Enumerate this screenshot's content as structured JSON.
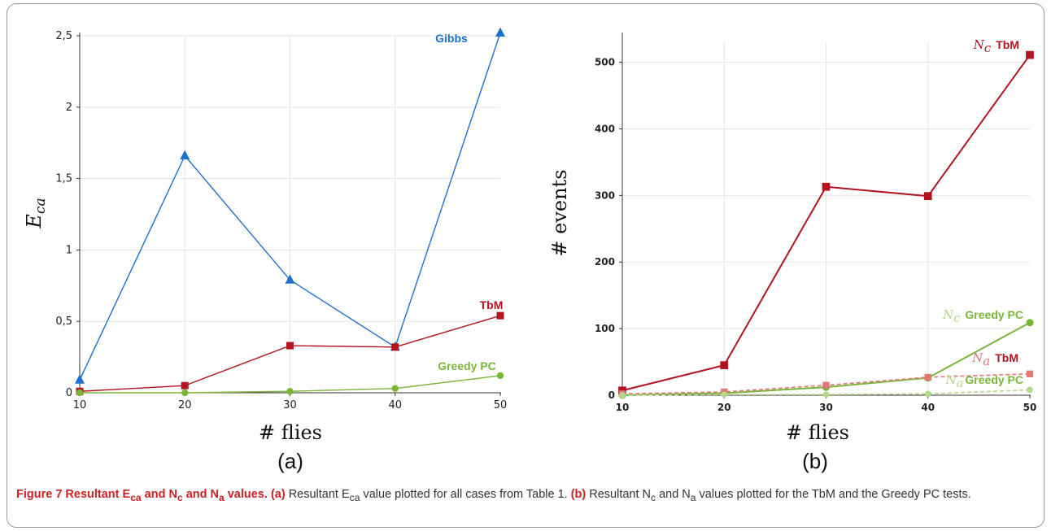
{
  "caption": {
    "figure_title": "Figure 7 Resultant E",
    "figure_title_sub": "ca",
    "figure_title_rest_1": " and N",
    "figure_title_sub2": "c",
    "figure_title_rest_2": " and N",
    "figure_title_sub3": "a",
    "figure_title_rest_3": " values.",
    "part_a_label": "(a)",
    "part_a_text_1": " Resultant E",
    "part_a_sub": "ca",
    "part_a_text_2": " value plotted for all cases from Table 1. ",
    "part_b_label": "(b)",
    "part_b_text_1": " Resultant N",
    "part_b_sub1": "c",
    "part_b_text_2": " and N",
    "part_b_sub2": "a",
    "part_b_text_3": " values plotted for the TbM and the Greedy PC tests."
  },
  "colors": {
    "gibbs": "#1f6fcc",
    "tbm": "#b3141f",
    "greedy": "#7ab53a",
    "tbm_light": "#e07878",
    "greedy_light": "#b5d98a",
    "grid": "#e6e6e6"
  },
  "chart_data": [
    {
      "type": "line",
      "panel_label": "(a)",
      "xlabel": "# flies",
      "ylabel_main": "E",
      "ylabel_sub": "ca",
      "x": [
        10,
        20,
        30,
        40,
        50
      ],
      "xlim": [
        10,
        50
      ],
      "ylim": [
        0,
        2.5
      ],
      "yticks": [
        0,
        0.5,
        1,
        1.5,
        2,
        2.5
      ],
      "ytick_labels": [
        "0",
        "0,5",
        "1",
        "1,5",
        "2",
        "2,5"
      ],
      "xtick_labels": [
        "10",
        "20",
        "30",
        "40",
        "50"
      ],
      "grid": true,
      "series": [
        {
          "name": "Gibbs",
          "values": [
            0.09,
            1.66,
            0.79,
            0.32,
            2.52
          ],
          "color": "#1f6fcc",
          "marker": "triangle"
        },
        {
          "name": "TbM",
          "values": [
            0.01,
            0.05,
            0.33,
            0.32,
            0.54
          ],
          "color": "#b3141f",
          "marker": "square"
        },
        {
          "name": "Greedy PC",
          "values": [
            0.0,
            0.0,
            0.01,
            0.03,
            0.12
          ],
          "color": "#7ab53a",
          "marker": "circle"
        }
      ]
    },
    {
      "type": "line",
      "panel_label": "(b)",
      "xlabel": "# flies",
      "ylabel": "# events",
      "x": [
        10,
        20,
        30,
        40,
        50
      ],
      "xlim": [
        10,
        50
      ],
      "ylim": [
        0,
        530
      ],
      "yticks": [
        0,
        100,
        200,
        300,
        400,
        500
      ],
      "ytick_labels": [
        "0",
        "100",
        "200",
        "300",
        "400",
        "500"
      ],
      "xtick_labels": [
        "10",
        "20",
        "30",
        "40",
        "50"
      ],
      "grid": true,
      "series": [
        {
          "name_var": "N",
          "name_sub": "c",
          "name": "TbM",
          "values": [
            7,
            45,
            313,
            299,
            511
          ],
          "color": "#b3141f",
          "marker": "square",
          "style": "solid"
        },
        {
          "name_var": "N",
          "name_sub": "c",
          "name": "Greedy PC",
          "values": [
            0,
            3,
            12,
            26,
            109
          ],
          "color": "#7ab53a",
          "marker": "circle",
          "style": "solid"
        },
        {
          "name_var": "N",
          "name_sub": "a",
          "name": "TbM",
          "values": [
            2,
            5,
            15,
            27,
            32
          ],
          "color": "#e07878",
          "marker": "square",
          "style": "dashed"
        },
        {
          "name_var": "N",
          "name_sub": "a",
          "name": "Greedy PC",
          "values": [
            0,
            1,
            1,
            2,
            8
          ],
          "color": "#b5d98a",
          "marker": "circle",
          "style": "dashed"
        }
      ]
    }
  ]
}
